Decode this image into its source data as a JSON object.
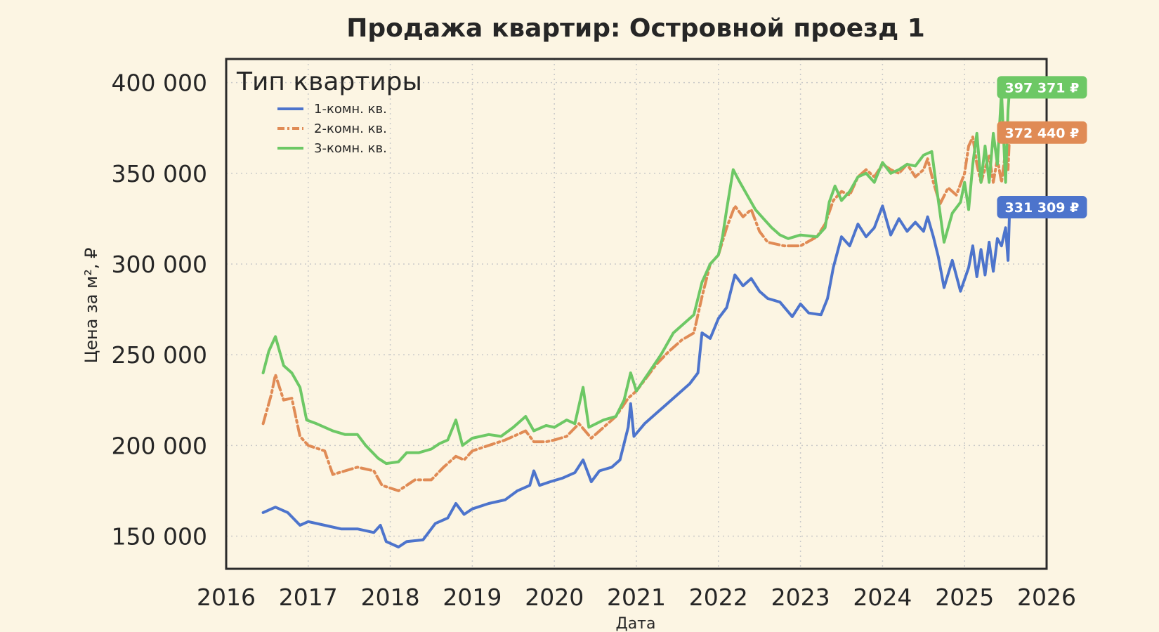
{
  "chart_data": {
    "type": "line",
    "title": "Продажа квартир: Островной проезд 1",
    "xlabel": "Дата",
    "ylabel": "Цена за м², ₽",
    "xlim": [
      2016,
      2026
    ],
    "ylim": [
      132000,
      413000
    ],
    "x_ticks": [
      2016,
      2017,
      2018,
      2019,
      2020,
      2021,
      2022,
      2023,
      2024,
      2025,
      2026
    ],
    "y_ticks": [
      150000,
      200000,
      250000,
      300000,
      350000,
      400000
    ],
    "y_tick_labels": [
      "150 000",
      "200 000",
      "250 000",
      "300 000",
      "350 000",
      "400 000"
    ],
    "grid": true,
    "legend": {
      "title": "Тип квартиры",
      "placement": "top-left"
    },
    "series": [
      {
        "name": "1-комн. кв.",
        "color": "#4d74cc",
        "dash": "solid",
        "end_label": "331 309 ₽",
        "points": [
          [
            2016.45,
            163000
          ],
          [
            2016.6,
            166000
          ],
          [
            2016.75,
            163000
          ],
          [
            2016.9,
            156000
          ],
          [
            2017.0,
            158000
          ],
          [
            2017.2,
            156000
          ],
          [
            2017.4,
            154000
          ],
          [
            2017.6,
            154000
          ],
          [
            2017.8,
            152000
          ],
          [
            2017.88,
            156000
          ],
          [
            2017.95,
            147000
          ],
          [
            2018.1,
            144000
          ],
          [
            2018.2,
            147000
          ],
          [
            2018.4,
            148000
          ],
          [
            2018.55,
            157000
          ],
          [
            2018.7,
            160000
          ],
          [
            2018.8,
            168000
          ],
          [
            2018.9,
            162000
          ],
          [
            2019.0,
            165000
          ],
          [
            2019.2,
            168000
          ],
          [
            2019.4,
            170000
          ],
          [
            2019.55,
            175000
          ],
          [
            2019.7,
            178000
          ],
          [
            2019.75,
            186000
          ],
          [
            2019.82,
            178000
          ],
          [
            2019.95,
            180000
          ],
          [
            2020.1,
            182000
          ],
          [
            2020.25,
            185000
          ],
          [
            2020.35,
            192000
          ],
          [
            2020.45,
            180000
          ],
          [
            2020.55,
            186000
          ],
          [
            2020.7,
            188000
          ],
          [
            2020.8,
            192000
          ],
          [
            2020.9,
            210000
          ],
          [
            2020.93,
            223000
          ],
          [
            2020.97,
            205000
          ],
          [
            2021.1,
            212000
          ],
          [
            2021.25,
            218000
          ],
          [
            2021.35,
            222000
          ],
          [
            2021.5,
            228000
          ],
          [
            2021.65,
            234000
          ],
          [
            2021.75,
            240000
          ],
          [
            2021.8,
            262000
          ],
          [
            2021.9,
            259000
          ],
          [
            2022.0,
            270000
          ],
          [
            2022.1,
            276000
          ],
          [
            2022.2,
            294000
          ],
          [
            2022.3,
            288000
          ],
          [
            2022.4,
            292000
          ],
          [
            2022.5,
            285000
          ],
          [
            2022.6,
            281000
          ],
          [
            2022.75,
            279000
          ],
          [
            2022.9,
            271000
          ],
          [
            2023.0,
            278000
          ],
          [
            2023.1,
            273000
          ],
          [
            2023.25,
            272000
          ],
          [
            2023.33,
            281000
          ],
          [
            2023.4,
            298000
          ],
          [
            2023.5,
            315000
          ],
          [
            2023.6,
            310000
          ],
          [
            2023.7,
            322000
          ],
          [
            2023.8,
            315000
          ],
          [
            2023.9,
            320000
          ],
          [
            2024.0,
            332000
          ],
          [
            2024.1,
            316000
          ],
          [
            2024.2,
            325000
          ],
          [
            2024.3,
            318000
          ],
          [
            2024.4,
            323000
          ],
          [
            2024.5,
            318000
          ],
          [
            2024.55,
            326000
          ],
          [
            2024.62,
            315000
          ],
          [
            2024.68,
            304000
          ],
          [
            2024.75,
            287000
          ],
          [
            2024.85,
            302000
          ],
          [
            2024.95,
            285000
          ],
          [
            2025.05,
            298000
          ],
          [
            2025.1,
            310000
          ],
          [
            2025.15,
            293000
          ],
          [
            2025.2,
            308000
          ],
          [
            2025.25,
            294000
          ],
          [
            2025.3,
            312000
          ],
          [
            2025.35,
            296000
          ],
          [
            2025.4,
            314000
          ],
          [
            2025.45,
            310000
          ],
          [
            2025.5,
            320000
          ],
          [
            2025.53,
            302000
          ],
          [
            2025.55,
            331309
          ]
        ]
      },
      {
        "name": "2-комн. кв.",
        "color": "#e08b55",
        "dash": "dashdot",
        "end_label": "372 440 ₽",
        "points": [
          [
            2016.45,
            212000
          ],
          [
            2016.55,
            228000
          ],
          [
            2016.6,
            239000
          ],
          [
            2016.7,
            225000
          ],
          [
            2016.8,
            226000
          ],
          [
            2016.9,
            205000
          ],
          [
            2017.0,
            200000
          ],
          [
            2017.2,
            197000
          ],
          [
            2017.3,
            184000
          ],
          [
            2017.45,
            186000
          ],
          [
            2017.6,
            188000
          ],
          [
            2017.8,
            186000
          ],
          [
            2017.9,
            178000
          ],
          [
            2018.1,
            175000
          ],
          [
            2018.3,
            181000
          ],
          [
            2018.5,
            181000
          ],
          [
            2018.65,
            188000
          ],
          [
            2018.8,
            194000
          ],
          [
            2018.9,
            192000
          ],
          [
            2019.0,
            197000
          ],
          [
            2019.2,
            200000
          ],
          [
            2019.4,
            203000
          ],
          [
            2019.55,
            206000
          ],
          [
            2019.65,
            208000
          ],
          [
            2019.75,
            202000
          ],
          [
            2019.9,
            202000
          ],
          [
            2020.0,
            203000
          ],
          [
            2020.15,
            205000
          ],
          [
            2020.3,
            212000
          ],
          [
            2020.45,
            204000
          ],
          [
            2020.6,
            210000
          ],
          [
            2020.75,
            216000
          ],
          [
            2020.9,
            226000
          ],
          [
            2021.0,
            230000
          ],
          [
            2021.1,
            236000
          ],
          [
            2021.25,
            245000
          ],
          [
            2021.4,
            252000
          ],
          [
            2021.55,
            258000
          ],
          [
            2021.7,
            262000
          ],
          [
            2021.8,
            282000
          ],
          [
            2021.9,
            300000
          ],
          [
            2022.0,
            305000
          ],
          [
            2022.1,
            320000
          ],
          [
            2022.2,
            332000
          ],
          [
            2022.3,
            326000
          ],
          [
            2022.4,
            330000
          ],
          [
            2022.5,
            318000
          ],
          [
            2022.6,
            312000
          ],
          [
            2022.8,
            310000
          ],
          [
            2023.0,
            310000
          ],
          [
            2023.2,
            315000
          ],
          [
            2023.3,
            322000
          ],
          [
            2023.4,
            335000
          ],
          [
            2023.5,
            340000
          ],
          [
            2023.6,
            338000
          ],
          [
            2023.7,
            348000
          ],
          [
            2023.8,
            352000
          ],
          [
            2023.9,
            348000
          ],
          [
            2024.0,
            355000
          ],
          [
            2024.1,
            352000
          ],
          [
            2024.2,
            350000
          ],
          [
            2024.3,
            355000
          ],
          [
            2024.4,
            348000
          ],
          [
            2024.5,
            352000
          ],
          [
            2024.55,
            358000
          ],
          [
            2024.62,
            345000
          ],
          [
            2024.7,
            333000
          ],
          [
            2024.8,
            342000
          ],
          [
            2024.9,
            338000
          ],
          [
            2025.0,
            350000
          ],
          [
            2025.05,
            365000
          ],
          [
            2025.1,
            370000
          ],
          [
            2025.15,
            355000
          ],
          [
            2025.2,
            345000
          ],
          [
            2025.3,
            360000
          ],
          [
            2025.35,
            345000
          ],
          [
            2025.4,
            358000
          ],
          [
            2025.45,
            345000
          ],
          [
            2025.5,
            362000
          ],
          [
            2025.53,
            352000
          ],
          [
            2025.55,
            372440
          ]
        ]
      },
      {
        "name": "3-комн. кв.",
        "color": "#6dc865",
        "dash": "solid",
        "end_label": "397 371 ₽",
        "points": [
          [
            2016.45,
            240000
          ],
          [
            2016.52,
            252000
          ],
          [
            2016.6,
            260000
          ],
          [
            2016.7,
            244000
          ],
          [
            2016.8,
            240000
          ],
          [
            2016.9,
            232000
          ],
          [
            2016.98,
            214000
          ],
          [
            2017.1,
            212000
          ],
          [
            2017.3,
            208000
          ],
          [
            2017.45,
            206000
          ],
          [
            2017.6,
            206000
          ],
          [
            2017.7,
            200000
          ],
          [
            2017.85,
            193000
          ],
          [
            2017.95,
            190000
          ],
          [
            2018.1,
            191000
          ],
          [
            2018.2,
            196000
          ],
          [
            2018.35,
            196000
          ],
          [
            2018.5,
            198000
          ],
          [
            2018.6,
            201000
          ],
          [
            2018.7,
            203000
          ],
          [
            2018.8,
            214000
          ],
          [
            2018.88,
            200000
          ],
          [
            2019.0,
            204000
          ],
          [
            2019.2,
            206000
          ],
          [
            2019.35,
            205000
          ],
          [
            2019.5,
            210000
          ],
          [
            2019.65,
            216000
          ],
          [
            2019.75,
            208000
          ],
          [
            2019.9,
            211000
          ],
          [
            2020.0,
            210000
          ],
          [
            2020.15,
            214000
          ],
          [
            2020.25,
            212000
          ],
          [
            2020.35,
            232000
          ],
          [
            2020.42,
            210000
          ],
          [
            2020.6,
            214000
          ],
          [
            2020.75,
            216000
          ],
          [
            2020.85,
            225000
          ],
          [
            2020.93,
            240000
          ],
          [
            2021.0,
            230000
          ],
          [
            2021.15,
            240000
          ],
          [
            2021.3,
            250000
          ],
          [
            2021.45,
            262000
          ],
          [
            2021.6,
            268000
          ],
          [
            2021.7,
            272000
          ],
          [
            2021.8,
            290000
          ],
          [
            2021.9,
            300000
          ],
          [
            2022.0,
            305000
          ],
          [
            2022.05,
            315000
          ],
          [
            2022.1,
            330000
          ],
          [
            2022.18,
            352000
          ],
          [
            2022.25,
            346000
          ],
          [
            2022.35,
            338000
          ],
          [
            2022.45,
            330000
          ],
          [
            2022.55,
            325000
          ],
          [
            2022.65,
            320000
          ],
          [
            2022.75,
            316000
          ],
          [
            2022.85,
            314000
          ],
          [
            2023.0,
            316000
          ],
          [
            2023.2,
            315000
          ],
          [
            2023.3,
            320000
          ],
          [
            2023.35,
            334000
          ],
          [
            2023.42,
            343000
          ],
          [
            2023.5,
            335000
          ],
          [
            2023.6,
            340000
          ],
          [
            2023.7,
            348000
          ],
          [
            2023.8,
            350000
          ],
          [
            2023.9,
            345000
          ],
          [
            2024.0,
            356000
          ],
          [
            2024.1,
            350000
          ],
          [
            2024.2,
            352000
          ],
          [
            2024.3,
            355000
          ],
          [
            2024.4,
            354000
          ],
          [
            2024.5,
            360000
          ],
          [
            2024.6,
            362000
          ],
          [
            2024.65,
            345000
          ],
          [
            2024.75,
            312000
          ],
          [
            2024.85,
            328000
          ],
          [
            2024.95,
            334000
          ],
          [
            2025.0,
            345000
          ],
          [
            2025.05,
            330000
          ],
          [
            2025.1,
            355000
          ],
          [
            2025.15,
            372000
          ],
          [
            2025.2,
            345000
          ],
          [
            2025.25,
            365000
          ],
          [
            2025.3,
            345000
          ],
          [
            2025.35,
            372000
          ],
          [
            2025.4,
            355000
          ],
          [
            2025.45,
            395000
          ],
          [
            2025.5,
            345000
          ],
          [
            2025.53,
            385000
          ],
          [
            2025.55,
            397371
          ]
        ]
      }
    ]
  }
}
